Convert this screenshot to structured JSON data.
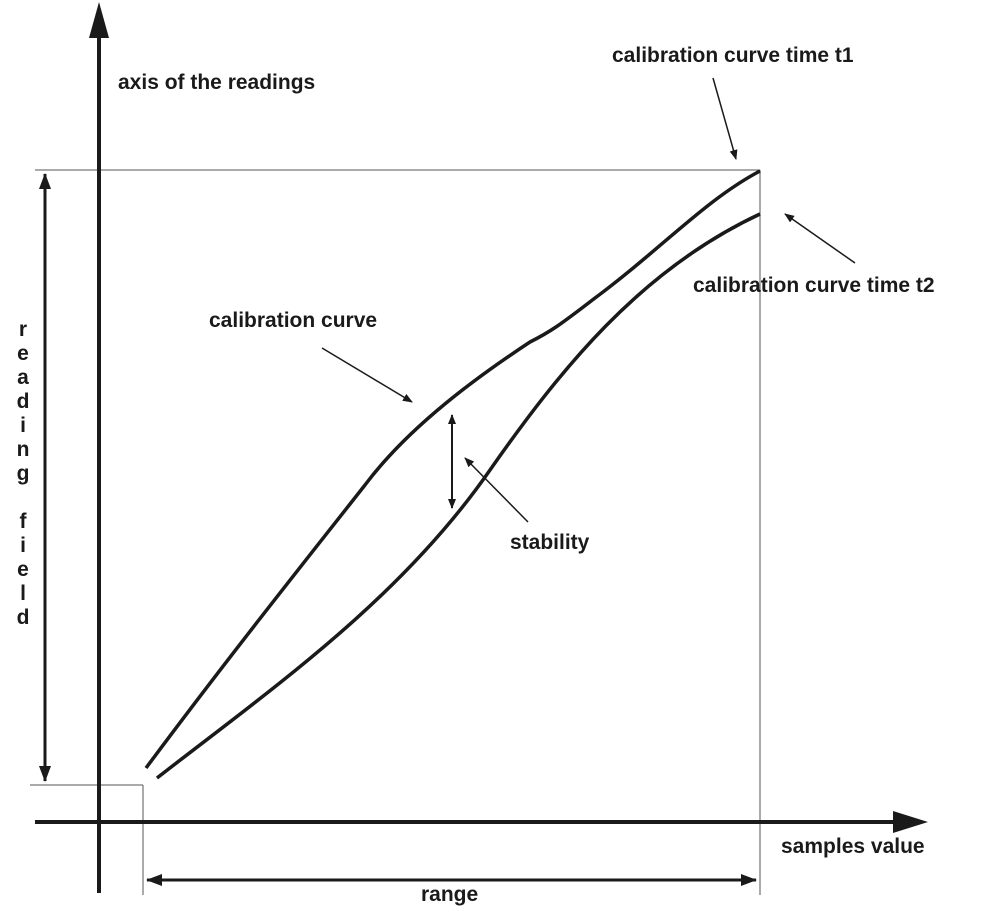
{
  "labels": {
    "y_axis": "axis of the readings",
    "x_axis": "samples value",
    "curve_t1": "calibration curve time t1",
    "curve_t2": "calibration curve time t2",
    "curve": "calibration curve",
    "stability": "stability",
    "range": "range",
    "reading_field": "reading field"
  },
  "colors": {
    "line": "#1a1a1a",
    "guide": "#555555"
  }
}
